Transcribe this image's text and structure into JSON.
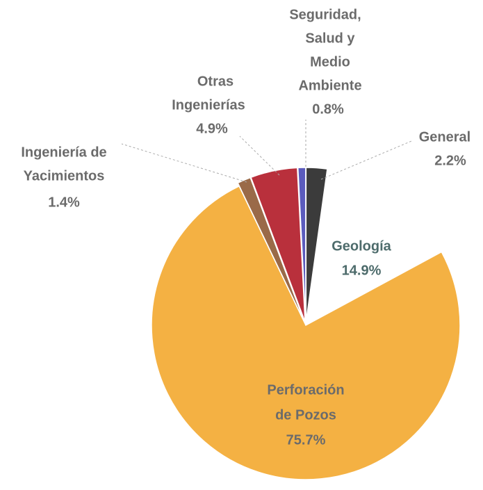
{
  "chart_data": {
    "type": "pie",
    "labels": [
      [
        "General"
      ],
      [
        "Geología"
      ],
      [
        "Perforación",
        "de Pozos"
      ],
      [
        "Ingeniería de",
        "Yacimientos"
      ],
      [
        "Otras",
        "Ingenierías"
      ],
      [
        "Seguridad,",
        "Salud y",
        "Medio",
        "Ambiente"
      ]
    ],
    "values": [
      2.2,
      14.9,
      75.7,
      1.4,
      4.9,
      0.8
    ],
    "value_labels": [
      "2.2%",
      "14.9%",
      "75.7%",
      "1.4%",
      "4.9%",
      "0.8%"
    ],
    "colors": [
      "#3b3b3b",
      "#ffffff",
      "#f4b143",
      "#9a6a48",
      "#b9303c",
      "#5b5bbd"
    ]
  }
}
